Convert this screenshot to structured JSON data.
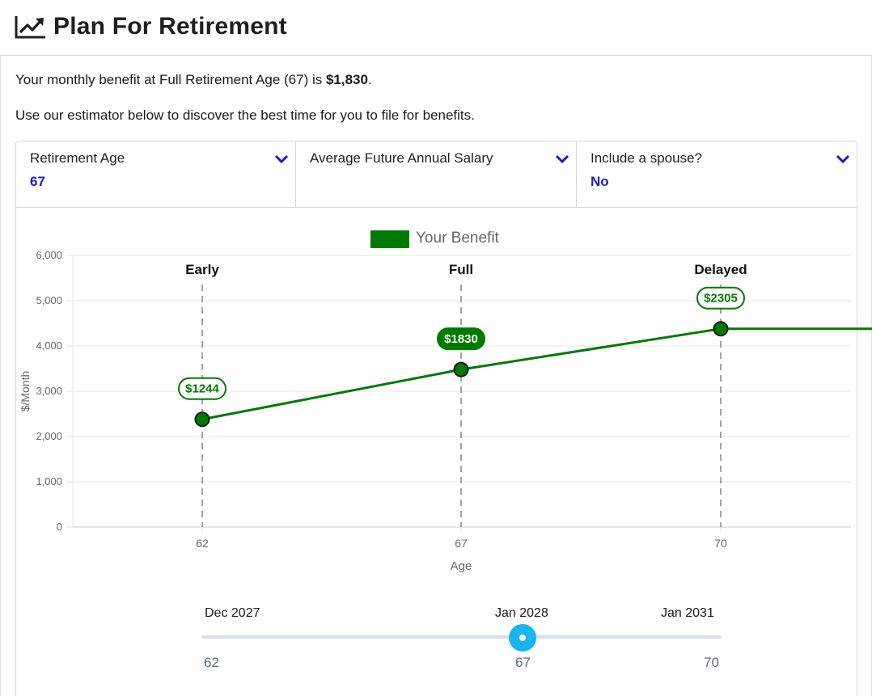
{
  "header": {
    "title": "Plan For Retirement",
    "icon": "line-chart-icon"
  },
  "intro": {
    "benefit_prefix": "Your monthly benefit at Full Retirement Age (67) is ",
    "benefit_amount": "$1,830",
    "benefit_suffix": ".",
    "estimator_text": "Use our estimator below to discover the best time for you to file for benefits."
  },
  "controls": {
    "retirement_age": {
      "label": "Retirement Age",
      "value": "67"
    },
    "future_salary": {
      "label": "Average Future Annual Salary",
      "value": ""
    },
    "spouse": {
      "label": "Include a spouse?",
      "value": "No"
    },
    "chevron_icon": "chevron-down-icon",
    "accent_color": "#1a1ad0"
  },
  "chart_data": {
    "type": "line",
    "legend": [
      "Your Benefit"
    ],
    "legend_position": "top-center",
    "series": [
      {
        "name": "Your Benefit",
        "x": [
          62,
          67,
          70,
          72.5
        ],
        "values": [
          2380,
          3480,
          4380,
          4380
        ],
        "color": "#007a00"
      }
    ],
    "markers": [
      {
        "label": "Early",
        "x": 62,
        "value": 2380,
        "bubble": "$1244",
        "bubble_style": "outline"
      },
      {
        "label": "Full",
        "x": 67,
        "value": 3480,
        "bubble": "$1830",
        "bubble_style": "filled"
      },
      {
        "label": "Delayed",
        "x": 70,
        "value": 4380,
        "bubble": "$2305",
        "bubble_style": "outline"
      }
    ],
    "xlabel": "Age",
    "ylabel": "$/Month",
    "x_ticks": [
      "62",
      "67",
      "70"
    ],
    "y_ticks": [
      "0",
      "1,000",
      "2,000",
      "3,000",
      "4,000",
      "5,000",
      "6,000"
    ],
    "ylim": [
      0,
      6000
    ],
    "grid": true
  },
  "slider": {
    "dates": {
      "start": "Dec 2027",
      "current": "Jan 2028",
      "end": "Jan 2031"
    },
    "ages": {
      "start": "62",
      "current": "67",
      "end": "70"
    },
    "min": 62,
    "max": 70,
    "value": 67,
    "thumb_color": "#18b6ef"
  }
}
